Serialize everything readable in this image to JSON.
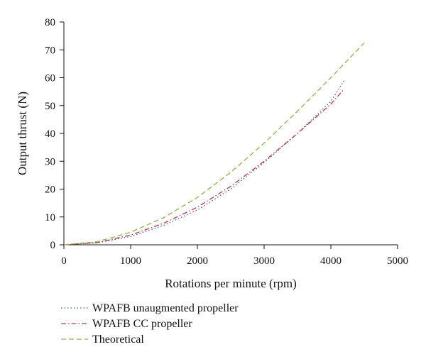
{
  "chart_data": {
    "type": "line",
    "title": "",
    "xlabel": "Rotations per minute (rpm)",
    "ylabel": "Output thrust (N)",
    "xlim": [
      0,
      5000
    ],
    "ylim": [
      0,
      80
    ],
    "xticks": [
      0,
      1000,
      2000,
      3000,
      4000,
      5000
    ],
    "yticks": [
      0,
      10,
      20,
      30,
      40,
      50,
      60,
      70,
      80
    ],
    "grid": false,
    "legend_position": "bottom-left, below plot",
    "series": [
      {
        "name": "WPAFB unaugmented propeller",
        "color": "#4a5a8c",
        "style": "dotted",
        "x": [
          0,
          500,
          1000,
          1500,
          2000,
          2500,
          3000,
          3500,
          4000,
          4200
        ],
        "y": [
          0,
          0.7,
          3.0,
          7.0,
          12.5,
          20.0,
          29.5,
          40.0,
          51.5,
          59.0
        ]
      },
      {
        "name": "WPAFB CC propeller",
        "color": "#b23a4a",
        "style": "dashdot",
        "x": [
          0,
          500,
          1000,
          1500,
          2000,
          2500,
          3000,
          3500,
          4000,
          4200
        ],
        "y": [
          0,
          0.8,
          3.5,
          7.8,
          13.5,
          21.0,
          30.0,
          40.0,
          50.5,
          56.0
        ]
      },
      {
        "name": "Theoretical",
        "color": "#8ab34a",
        "style": "dashed",
        "x": [
          0,
          500,
          1000,
          1500,
          2000,
          2500,
          3000,
          3500,
          4000,
          4500
        ],
        "y": [
          0,
          1.1,
          4.5,
          9.8,
          17.0,
          26.0,
          36.5,
          48.0,
          60.0,
          72.5
        ]
      }
    ]
  }
}
